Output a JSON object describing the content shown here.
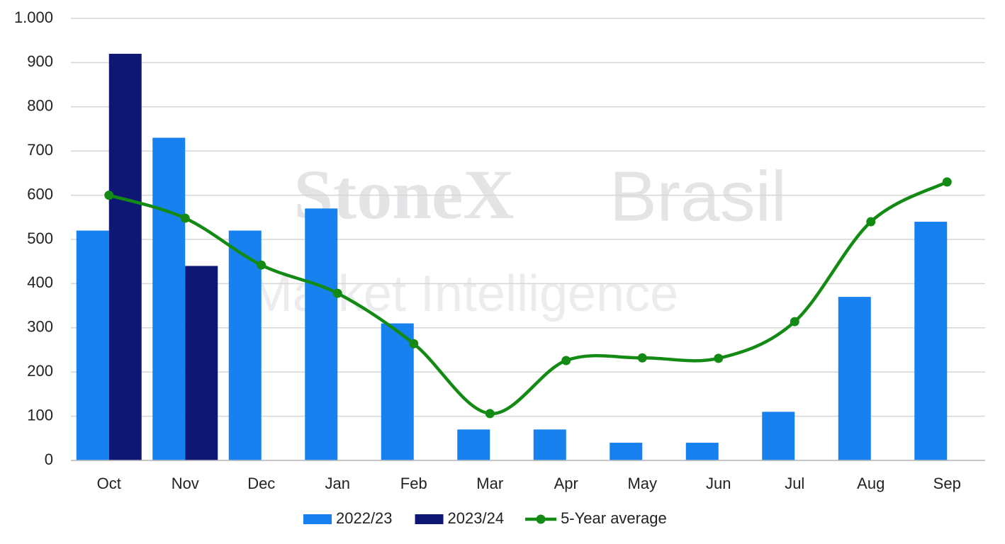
{
  "chart_data": {
    "type": "bar_line",
    "watermark": [
      "StoneX",
      "Brasil",
      "Market Intelligence"
    ],
    "categories": [
      "Oct",
      "Nov",
      "Dec",
      "Jan",
      "Feb",
      "Mar",
      "Apr",
      "May",
      "Jun",
      "Jul",
      "Aug",
      "Sep"
    ],
    "series": [
      {
        "name": "2022/23",
        "type": "bar",
        "color": "#1782ef",
        "values": [
          520,
          730,
          520,
          570,
          310,
          70,
          70,
          40,
          40,
          110,
          370,
          540
        ]
      },
      {
        "name": "2023/24",
        "type": "bar",
        "color": "#0e1874",
        "values": [
          920,
          440,
          null,
          null,
          null,
          null,
          null,
          null,
          null,
          null,
          null,
          null
        ]
      },
      {
        "name": "5-Year average",
        "type": "line",
        "color": "#138a13",
        "values": [
          600,
          548,
          442,
          378,
          264,
          106,
          226,
          232,
          231,
          314,
          540,
          630
        ]
      }
    ],
    "ylim": [
      0,
      1000
    ],
    "yticks": [
      0,
      100,
      200,
      300,
      400,
      500,
      600,
      700,
      800,
      900,
      {
        "value": 1000,
        "label": "1.000"
      }
    ],
    "grid": true,
    "legend": "bottom"
  }
}
